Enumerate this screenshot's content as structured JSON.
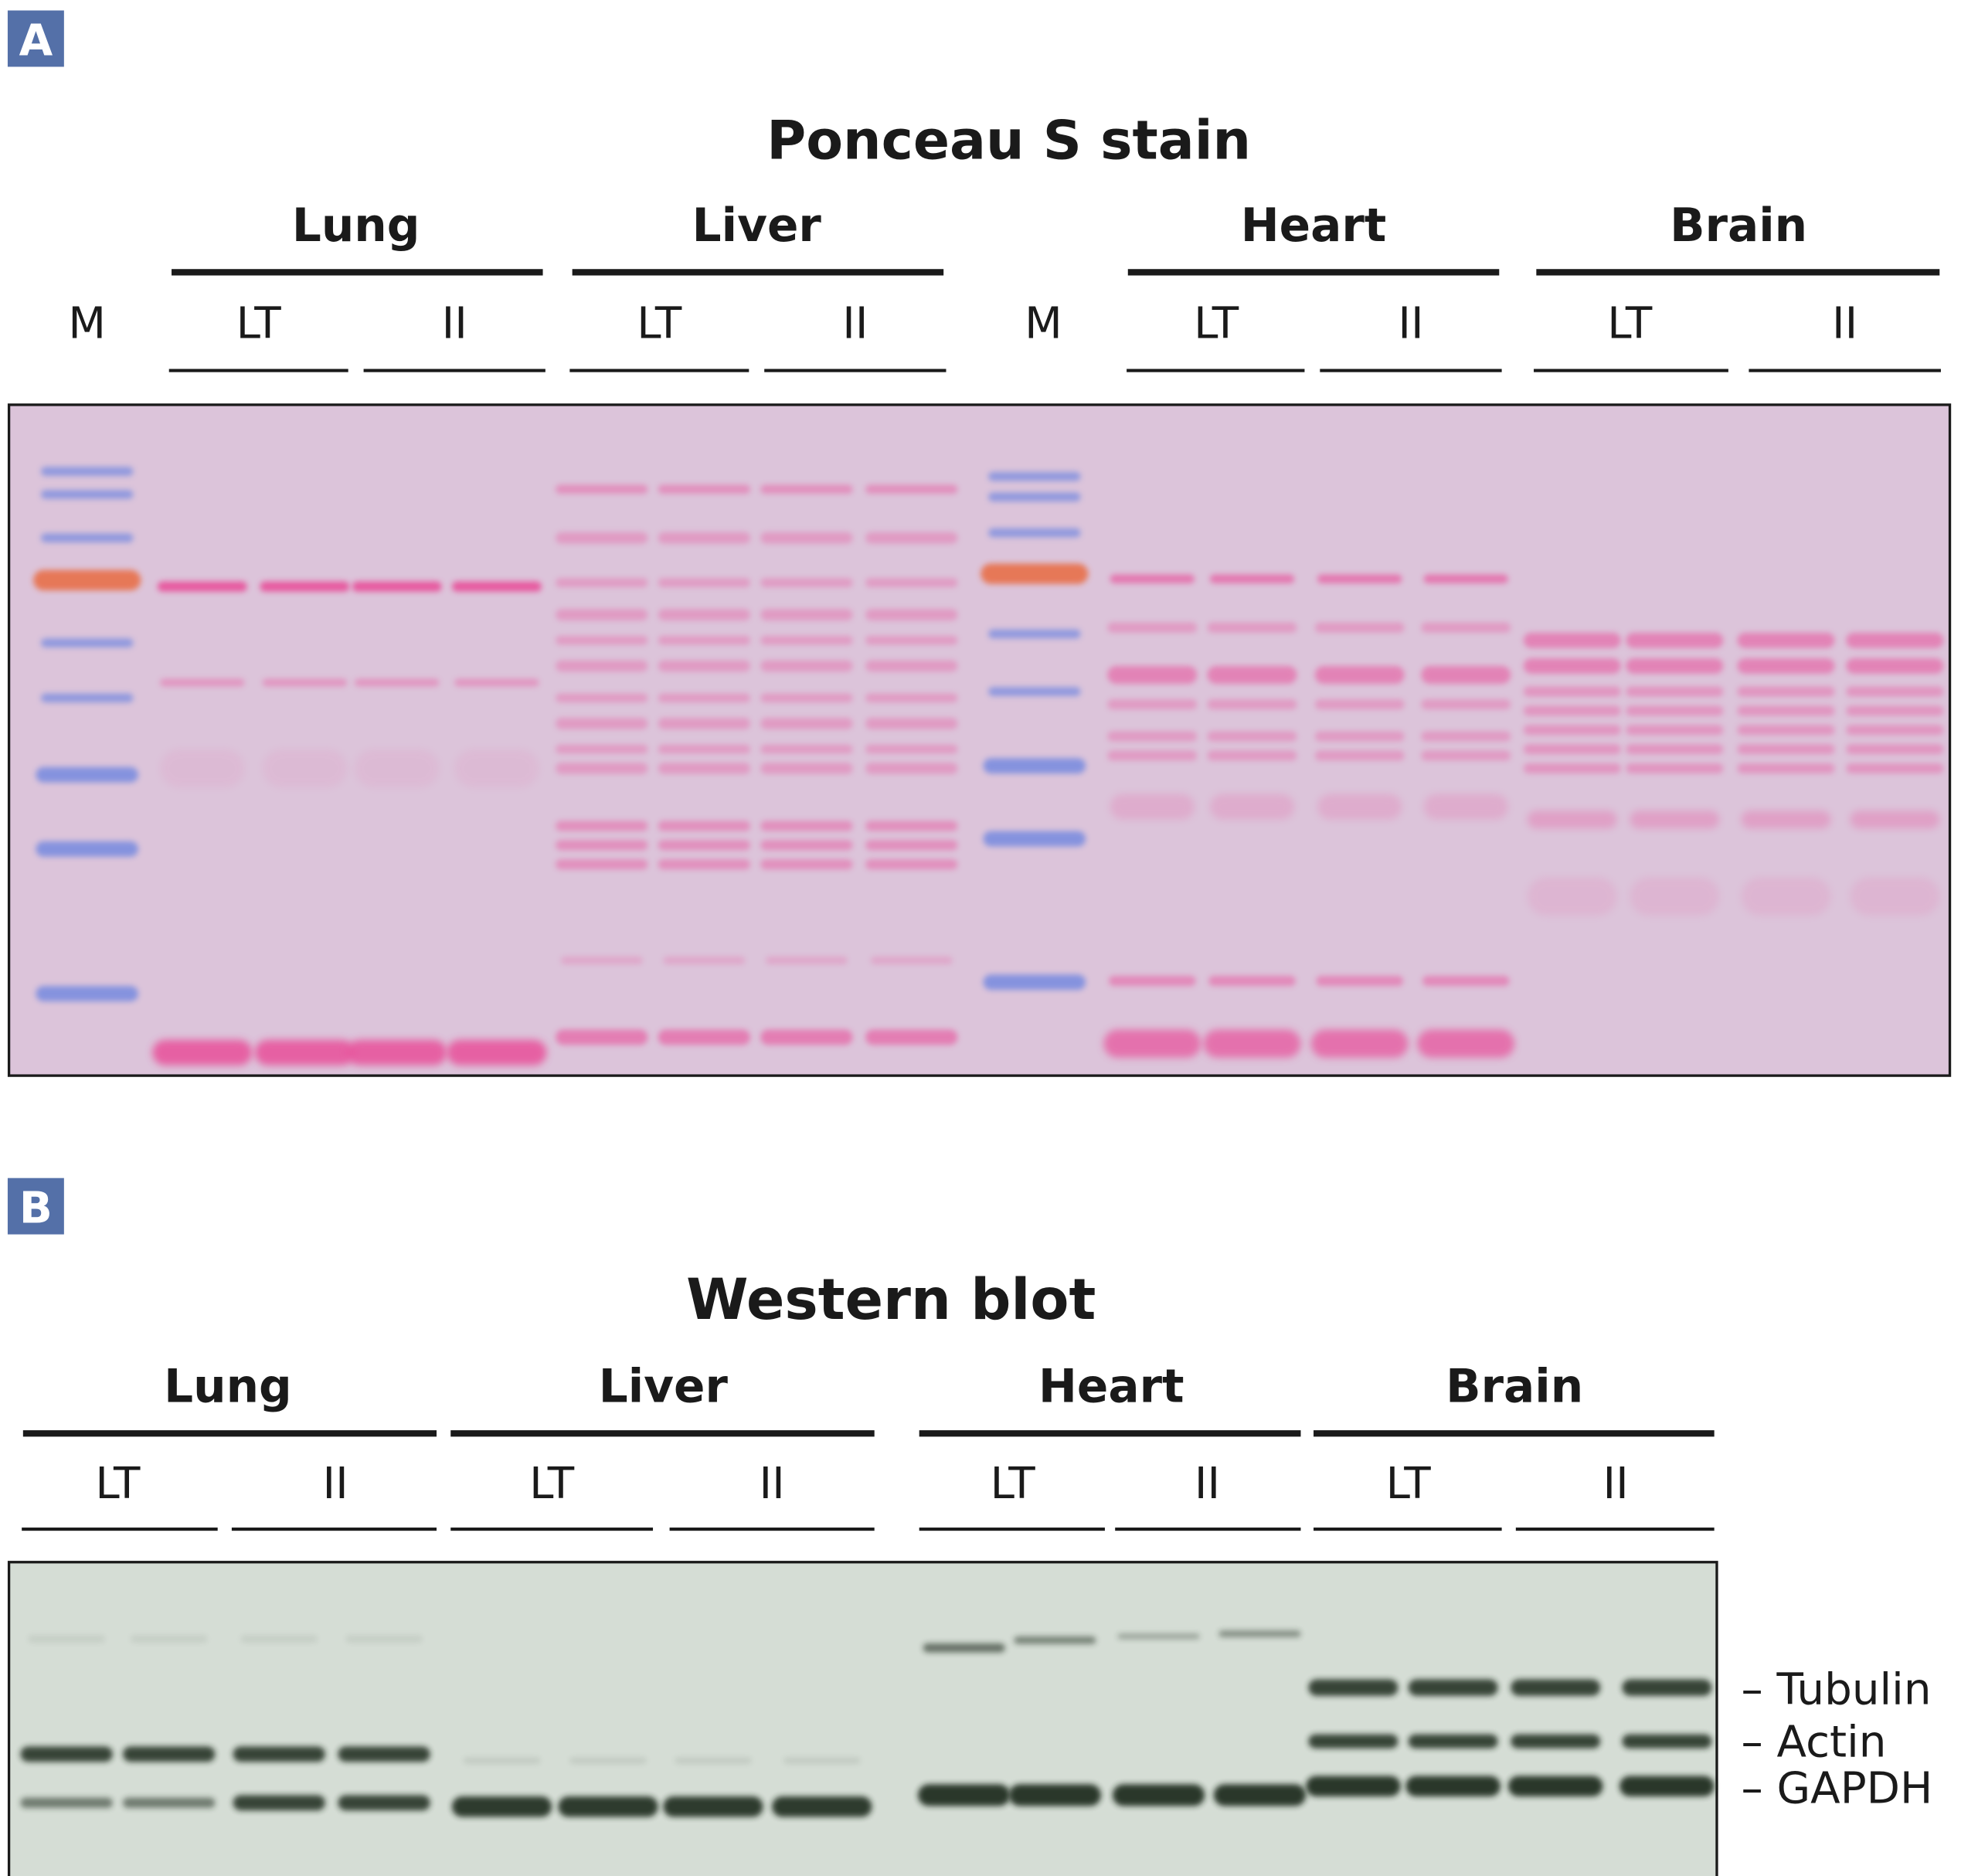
{
  "panel_a": {
    "badge": "A",
    "title": "Ponceau S stain",
    "marker_label": "M",
    "tissues": [
      "Lung",
      "Liver",
      "Heart",
      "Brain"
    ],
    "conditions": [
      "LT",
      "II",
      "LT",
      "II",
      "LT",
      "II",
      "LT",
      "II"
    ]
  },
  "panel_b": {
    "badge": "B",
    "title": "Western blot",
    "tissues": [
      "Lung",
      "Liver",
      "Heart",
      "Brain"
    ],
    "conditions": [
      "LT",
      "II",
      "LT",
      "II",
      "LT",
      "II",
      "LT",
      "II"
    ],
    "band_labels": [
      "– Tubulin",
      "– Actin",
      "– GAPDH"
    ]
  },
  "colors": {
    "badge": "#5470a8",
    "ponceau_bg": "#dcc4da",
    "ponceau_band": "#e8509a",
    "marker_blue": "#6f86e0",
    "marker_orange": "#e8704a",
    "blot_bg": "#d5ddd5",
    "blot_band": "#1e2a1e"
  }
}
